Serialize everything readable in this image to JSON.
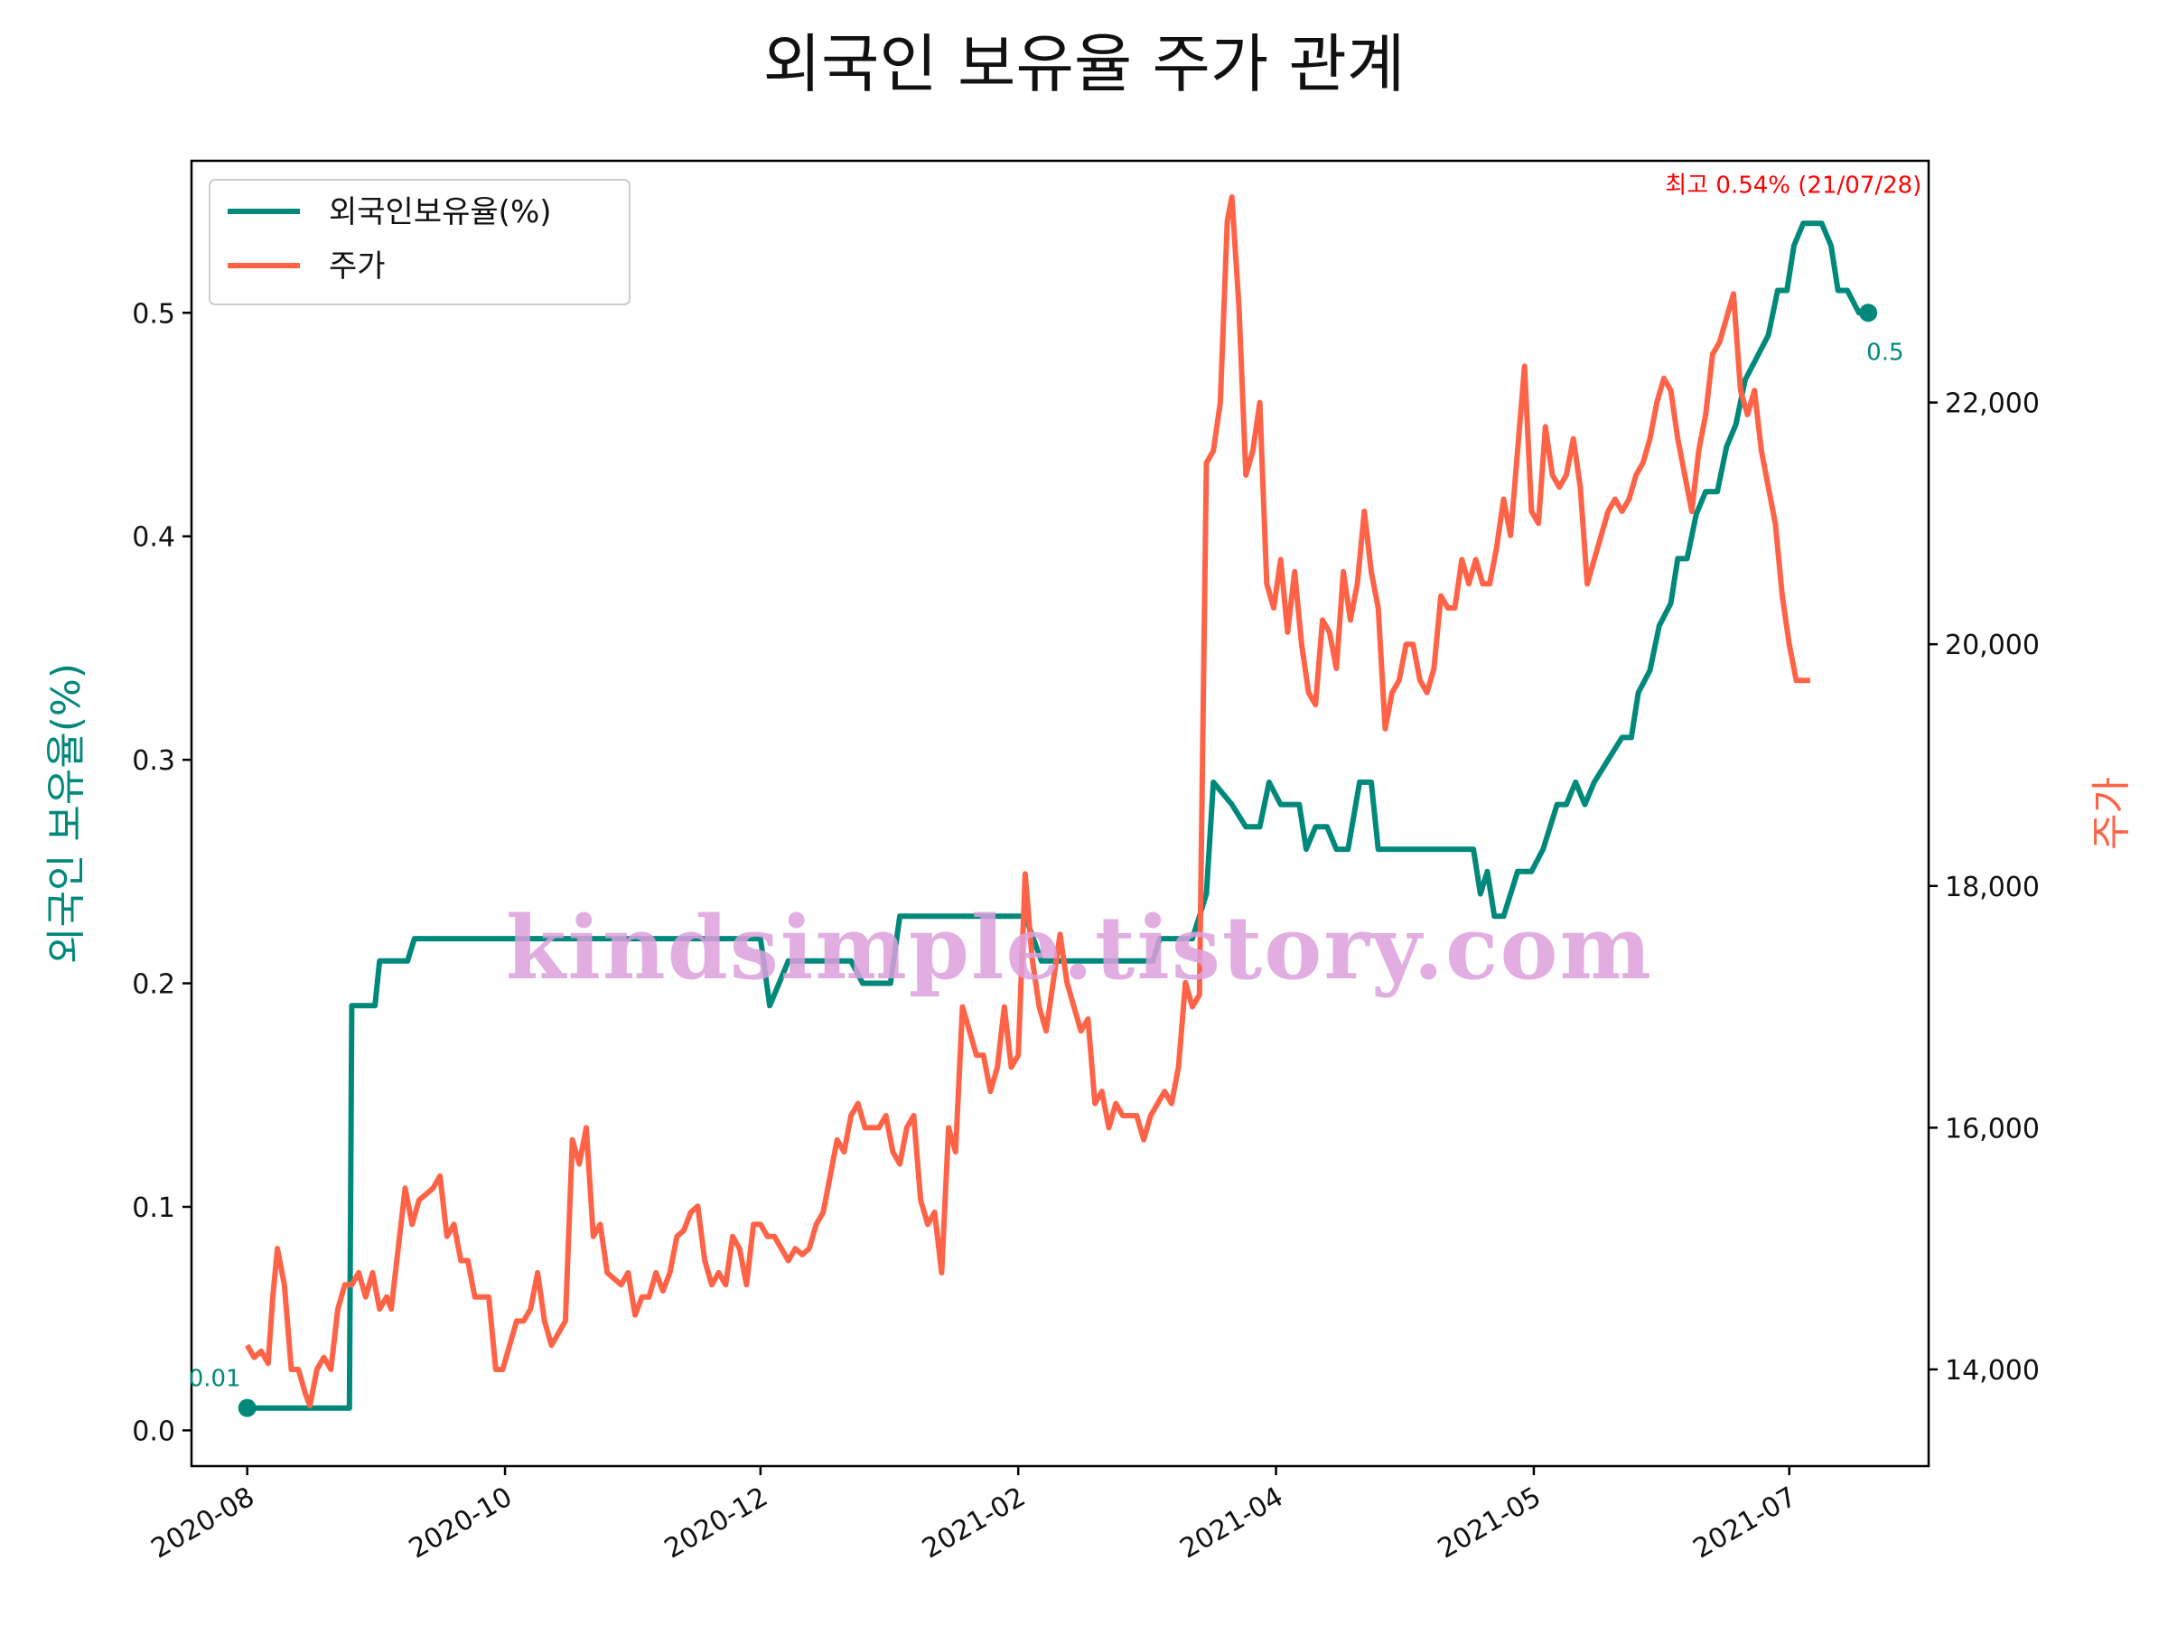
{
  "chart_data": {
    "type": "line",
    "title": "외국인 보유율 주가 관계",
    "ylabel_left": "외국인 보유율(%)",
    "ylabel_right": "주가",
    "x_ticks": [
      "2020-08",
      "2020-10",
      "2020-12",
      "2021-02",
      "2021-04",
      "2021-05",
      "2021-07"
    ],
    "ylim_left": [
      -0.016,
      0.568
    ],
    "yticks_left": [
      "0.0",
      "0.1",
      "0.2",
      "0.3",
      "0.4",
      "0.5"
    ],
    "ylim_right": [
      13200,
      24000
    ],
    "yticks_right": [
      "14,000",
      "16,000",
      "18,000",
      "20,000",
      "22,000"
    ],
    "legend_position": "upper-left",
    "grid": false,
    "colors": {
      "ratio": "#00897b",
      "price": "#ff6347",
      "max_annotation": "#ff0000",
      "watermark": "#dda0dd"
    },
    "series": [
      {
        "name": "외국인보유율(%)",
        "axis": "left",
        "points": [
          [
            0,
            0.01
          ],
          [
            44,
            0.01
          ],
          [
            45,
            0.19
          ],
          [
            55,
            0.19
          ],
          [
            57,
            0.21
          ],
          [
            69,
            0.21
          ],
          [
            72,
            0.22
          ],
          [
            208,
            0.22
          ],
          [
            221,
            0.22
          ],
          [
            225,
            0.19
          ],
          [
            233,
            0.21
          ],
          [
            260,
            0.21
          ],
          [
            265,
            0.2
          ],
          [
            277,
            0.2
          ],
          [
            281,
            0.23
          ],
          [
            335,
            0.23
          ],
          [
            342,
            0.21
          ],
          [
            390,
            0.21
          ],
          [
            393,
            0.22
          ],
          [
            407,
            0.22
          ],
          [
            413,
            0.24
          ],
          [
            416,
            0.29
          ],
          [
            424,
            0.28
          ],
          [
            430,
            0.27
          ],
          [
            436,
            0.27
          ],
          [
            440,
            0.29
          ],
          [
            445,
            0.28
          ],
          [
            453,
            0.28
          ],
          [
            456,
            0.26
          ],
          [
            460,
            0.27
          ],
          [
            465,
            0.27
          ],
          [
            469,
            0.26
          ],
          [
            474,
            0.26
          ],
          [
            479,
            0.29
          ],
          [
            484,
            0.29
          ],
          [
            487,
            0.26
          ],
          [
            528,
            0.26
          ],
          [
            531,
            0.24
          ],
          [
            534,
            0.25
          ],
          [
            537,
            0.23
          ],
          [
            541,
            0.23
          ],
          [
            547,
            0.25
          ],
          [
            553,
            0.25
          ],
          [
            558,
            0.26
          ],
          [
            564,
            0.28
          ],
          [
            568,
            0.28
          ],
          [
            572,
            0.29
          ],
          [
            576,
            0.28
          ],
          [
            580,
            0.29
          ],
          [
            586,
            0.3
          ],
          [
            592,
            0.31
          ],
          [
            596,
            0.31
          ],
          [
            599,
            0.33
          ],
          [
            604,
            0.34
          ],
          [
            608,
            0.36
          ],
          [
            613,
            0.37
          ],
          [
            616,
            0.39
          ],
          [
            620,
            0.39
          ],
          [
            624,
            0.41
          ],
          [
            628,
            0.42
          ],
          [
            633,
            0.42
          ],
          [
            637,
            0.44
          ],
          [
            641,
            0.45
          ],
          [
            645,
            0.47
          ],
          [
            650,
            0.48
          ],
          [
            655,
            0.49
          ],
          [
            659,
            0.51
          ],
          [
            663,
            0.51
          ],
          [
            666,
            0.53
          ],
          [
            670,
            0.54
          ],
          [
            678,
            0.54
          ],
          [
            682,
            0.53
          ],
          [
            685,
            0.51
          ],
          [
            689,
            0.51
          ],
          [
            694,
            0.5
          ],
          [
            698,
            0.5
          ]
        ],
        "start_label": "0.01",
        "end_label": "0.5"
      },
      {
        "name": "주가",
        "axis": "right",
        "points": [
          [
            0,
            14200
          ],
          [
            3,
            14100
          ],
          [
            6,
            14150
          ],
          [
            9,
            14050
          ],
          [
            11,
            14600
          ],
          [
            13,
            15000
          ],
          [
            16,
            14700
          ],
          [
            19,
            14000
          ],
          [
            22,
            14000
          ],
          [
            25,
            13800
          ],
          [
            27,
            13700
          ],
          [
            30,
            14000
          ],
          [
            33,
            14100
          ],
          [
            36,
            14000
          ],
          [
            39,
            14500
          ],
          [
            42,
            14700
          ],
          [
            45,
            14700
          ],
          [
            48,
            14800
          ],
          [
            51,
            14600
          ],
          [
            54,
            14800
          ],
          [
            57,
            14500
          ],
          [
            60,
            14600
          ],
          [
            62,
            14500
          ],
          [
            65,
            15000
          ],
          [
            68,
            15500
          ],
          [
            71,
            15200
          ],
          [
            74,
            15400
          ],
          [
            77,
            15450
          ],
          [
            80,
            15500
          ],
          [
            83,
            15600
          ],
          [
            86,
            15100
          ],
          [
            89,
            15200
          ],
          [
            92,
            14900
          ],
          [
            95,
            14900
          ],
          [
            98,
            14600
          ],
          [
            101,
            14600
          ],
          [
            104,
            14600
          ],
          [
            107,
            14000
          ],
          [
            110,
            14000
          ],
          [
            113,
            14200
          ],
          [
            116,
            14400
          ],
          [
            119,
            14400
          ],
          [
            122,
            14500
          ],
          [
            125,
            14800
          ],
          [
            128,
            14400
          ],
          [
            131,
            14200
          ],
          [
            134,
            14300
          ],
          [
            137,
            14400
          ],
          [
            140,
            15900
          ],
          [
            143,
            15700
          ],
          [
            146,
            16000
          ],
          [
            149,
            15100
          ],
          [
            152,
            15200
          ],
          [
            155,
            14800
          ],
          [
            158,
            14750
          ],
          [
            161,
            14700
          ],
          [
            164,
            14800
          ],
          [
            167,
            14450
          ],
          [
            170,
            14600
          ],
          [
            173,
            14600
          ],
          [
            176,
            14800
          ],
          [
            179,
            14650
          ],
          [
            182,
            14800
          ],
          [
            185,
            15100
          ],
          [
            188,
            15150
          ],
          [
            191,
            15300
          ],
          [
            194,
            15350
          ],
          [
            197,
            14900
          ],
          [
            200,
            14700
          ],
          [
            203,
            14800
          ],
          [
            206,
            14700
          ],
          [
            209,
            15100
          ],
          [
            212,
            15000
          ],
          [
            215,
            14700
          ],
          [
            218,
            15200
          ],
          [
            221,
            15200
          ],
          [
            224,
            15100
          ],
          [
            227,
            15100
          ],
          [
            230,
            15000
          ],
          [
            233,
            14900
          ],
          [
            236,
            15000
          ],
          [
            239,
            14950
          ],
          [
            242,
            15000
          ],
          [
            245,
            15200
          ],
          [
            248,
            15300
          ],
          [
            251,
            15600
          ],
          [
            254,
            15900
          ],
          [
            257,
            15800
          ],
          [
            260,
            16100
          ],
          [
            263,
            16200
          ],
          [
            266,
            16000
          ],
          [
            269,
            16000
          ],
          [
            272,
            16000
          ],
          [
            275,
            16100
          ],
          [
            278,
            15800
          ],
          [
            281,
            15700
          ],
          [
            284,
            16000
          ],
          [
            287,
            16100
          ],
          [
            290,
            15400
          ],
          [
            293,
            15200
          ],
          [
            296,
            15300
          ],
          [
            299,
            14800
          ],
          [
            302,
            16000
          ],
          [
            305,
            15800
          ],
          [
            308,
            17000
          ],
          [
            311,
            16800
          ],
          [
            314,
            16600
          ],
          [
            317,
            16600
          ],
          [
            320,
            16300
          ],
          [
            323,
            16500
          ],
          [
            326,
            17000
          ],
          [
            329,
            16500
          ],
          [
            332,
            16600
          ],
          [
            335,
            18100
          ],
          [
            338,
            17400
          ],
          [
            341,
            17000
          ],
          [
            344,
            16800
          ],
          [
            347,
            17200
          ],
          [
            350,
            17600
          ],
          [
            353,
            17200
          ],
          [
            356,
            17000
          ],
          [
            359,
            16800
          ],
          [
            362,
            16900
          ],
          [
            365,
            16200
          ],
          [
            368,
            16300
          ],
          [
            371,
            16000
          ],
          [
            374,
            16200
          ],
          [
            377,
            16100
          ],
          [
            380,
            16100
          ],
          [
            383,
            16100
          ],
          [
            386,
            15900
          ],
          [
            389,
            16100
          ],
          [
            392,
            16200
          ],
          [
            395,
            16300
          ],
          [
            398,
            16200
          ],
          [
            401,
            16500
          ],
          [
            404,
            17200
          ],
          [
            407,
            17000
          ],
          [
            410,
            17100
          ],
          [
            413,
            21500
          ],
          [
            416,
            21600
          ],
          [
            419,
            22000
          ],
          [
            422,
            23500
          ],
          [
            424,
            23700
          ],
          [
            427,
            22800
          ],
          [
            430,
            21400
          ],
          [
            433,
            21600
          ],
          [
            436,
            22000
          ],
          [
            439,
            20500
          ],
          [
            442,
            20300
          ],
          [
            445,
            20700
          ],
          [
            448,
            20100
          ],
          [
            451,
            20600
          ],
          [
            454,
            20000
          ],
          [
            457,
            19600
          ],
          [
            460,
            19500
          ],
          [
            463,
            20200
          ],
          [
            466,
            20100
          ],
          [
            469,
            19800
          ],
          [
            472,
            20600
          ],
          [
            475,
            20200
          ],
          [
            478,
            20500
          ],
          [
            481,
            21100
          ],
          [
            484,
            20600
          ],
          [
            487,
            20300
          ],
          [
            490,
            19300
          ],
          [
            493,
            19600
          ],
          [
            496,
            19700
          ],
          [
            499,
            20000
          ],
          [
            502,
            20000
          ],
          [
            505,
            19700
          ],
          [
            508,
            19600
          ],
          [
            511,
            19800
          ],
          [
            514,
            20400
          ],
          [
            517,
            20300
          ],
          [
            520,
            20300
          ],
          [
            523,
            20700
          ],
          [
            526,
            20500
          ],
          [
            529,
            20700
          ],
          [
            532,
            20500
          ],
          [
            535,
            20500
          ],
          [
            538,
            20800
          ],
          [
            541,
            21200
          ],
          [
            544,
            20900
          ],
          [
            547,
            21600
          ],
          [
            550,
            22300
          ],
          [
            553,
            21100
          ],
          [
            556,
            21000
          ],
          [
            559,
            21800
          ],
          [
            562,
            21400
          ],
          [
            565,
            21300
          ],
          [
            568,
            21400
          ],
          [
            571,
            21700
          ],
          [
            574,
            21300
          ],
          [
            577,
            20500
          ],
          [
            580,
            20700
          ],
          [
            583,
            20900
          ],
          [
            586,
            21100
          ],
          [
            589,
            21200
          ],
          [
            592,
            21100
          ],
          [
            595,
            21200
          ],
          [
            598,
            21400
          ],
          [
            601,
            21500
          ],
          [
            604,
            21700
          ],
          [
            607,
            22000
          ],
          [
            610,
            22200
          ],
          [
            613,
            22100
          ],
          [
            616,
            21700
          ],
          [
            619,
            21400
          ],
          [
            622,
            21100
          ],
          [
            625,
            21600
          ],
          [
            628,
            21900
          ],
          [
            631,
            22400
          ],
          [
            634,
            22500
          ],
          [
            637,
            22700
          ],
          [
            640,
            22900
          ],
          [
            643,
            22100
          ],
          [
            646,
            21900
          ],
          [
            649,
            22100
          ],
          [
            652,
            21600
          ],
          [
            655,
            21300
          ],
          [
            658,
            21000
          ],
          [
            661,
            20400
          ],
          [
            664,
            20000
          ],
          [
            667,
            19700
          ],
          [
            670,
            19700
          ],
          [
            673,
            19700
          ]
        ],
        "x_offset": 0.022
      }
    ],
    "x_domain": [
      -24,
      724
    ],
    "x_tick_positions": [
      0,
      111,
      221,
      332,
      443,
      554,
      664
    ],
    "max_annotation": {
      "label": "최고 0.54% (21/07/28)",
      "x": 672,
      "y": 0.54
    }
  },
  "watermark": {
    "text": "kindsimple.tistory.com"
  }
}
